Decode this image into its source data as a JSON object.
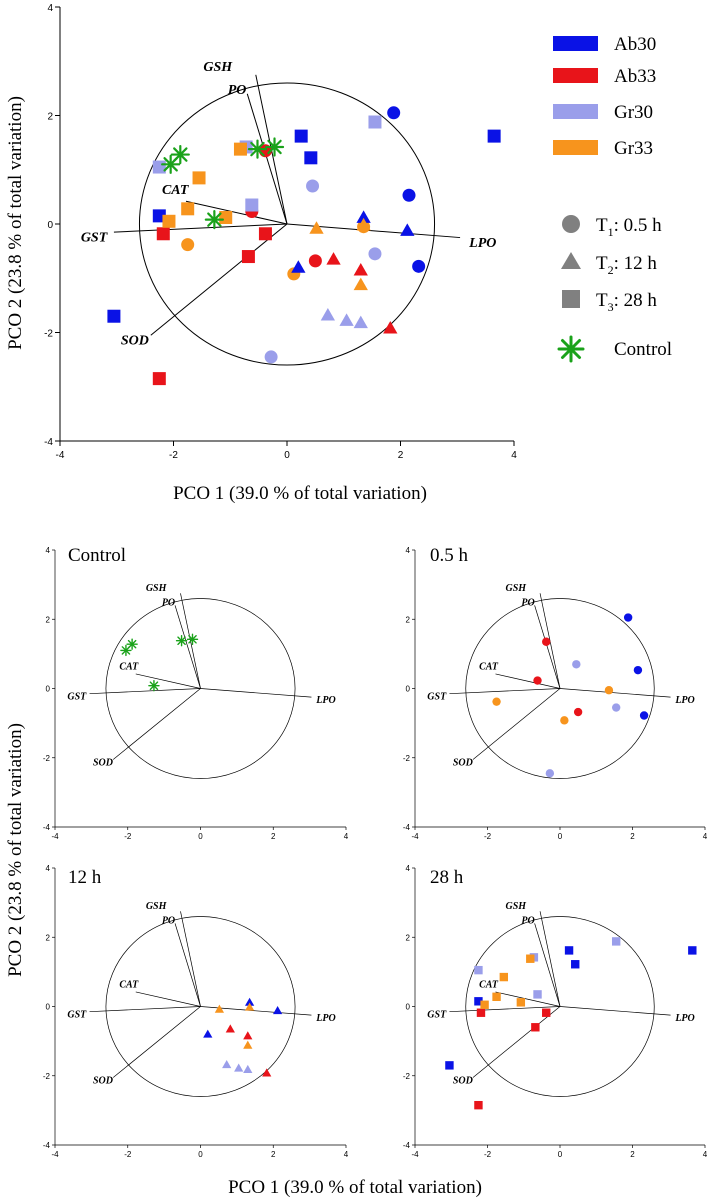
{
  "legend": {
    "groups": [
      {
        "name": "Ab30",
        "color": "#0a12e6"
      },
      {
        "name": "Ab33",
        "color": "#e8141a"
      },
      {
        "name": "Gr30",
        "color": "#9a9eea"
      },
      {
        "name": "Gr33",
        "color": "#f7941d"
      }
    ],
    "times": [
      {
        "key": "T1",
        "shape": "circle",
        "prefix": "T",
        "sub": "1",
        "suffix": ": 0.5 h"
      },
      {
        "key": "T2",
        "shape": "triangle",
        "prefix": "T",
        "sub": "2",
        "suffix": ": 12 h"
      },
      {
        "key": "T3",
        "shape": "square",
        "prefix": "T",
        "sub": "3",
        "suffix": ": 28 h"
      }
    ],
    "control_label": "Control",
    "control_color": "#1aa21a",
    "neutral_color": "#808080"
  },
  "axes": {
    "xlabel": "PCO 1 (39.0 % of total variation)",
    "ylabel": "PCO 2 (23.8 % of total variation)",
    "xlim": [
      -4,
      4
    ],
    "ylim": [
      -4,
      4
    ],
    "ticks": [
      "-4",
      "-2",
      "0",
      "2",
      "4"
    ],
    "tick_values": [
      -4,
      -2,
      0,
      2,
      4
    ]
  },
  "panel_titles": {
    "control": "Control",
    "t1": "0.5 h",
    "t2": "12 h",
    "t3": "28 h"
  },
  "chart_data": {
    "type": "scatter",
    "title": "",
    "circle_radius": 2.6,
    "vectors": [
      {
        "name": "GSH",
        "x": -0.55,
        "y": 2.75,
        "lx": -1.22,
        "ly": 2.82
      },
      {
        "name": "PO",
        "x": -0.7,
        "y": 2.4,
        "lx": -0.88,
        "ly": 2.4
      },
      {
        "name": "CAT",
        "x": -1.78,
        "y": 0.42,
        "lx": -1.97,
        "ly": 0.55
      },
      {
        "name": "GST",
        "x": -3.05,
        "y": -0.15,
        "lx": -3.4,
        "ly": -0.32
      },
      {
        "name": "SOD",
        "x": -2.4,
        "y": -2.05,
        "lx": -2.68,
        "ly": -2.22
      },
      {
        "name": "LPO",
        "x": 3.05,
        "y": -0.25,
        "lx": 3.45,
        "ly": -0.42
      }
    ],
    "points": [
      {
        "group": "Ab30",
        "time": "T1",
        "x": 1.88,
        "y": 2.05
      },
      {
        "group": "Ab30",
        "time": "T1",
        "x": 2.15,
        "y": 0.53
      },
      {
        "group": "Ab30",
        "time": "T1",
        "x": 2.32,
        "y": -0.78
      },
      {
        "group": "Ab33",
        "time": "T1",
        "x": -0.38,
        "y": 1.35
      },
      {
        "group": "Ab33",
        "time": "T1",
        "x": -0.62,
        "y": 0.23
      },
      {
        "group": "Ab33",
        "time": "T1",
        "x": 0.5,
        "y": -0.68
      },
      {
        "group": "Gr30",
        "time": "T1",
        "x": 0.45,
        "y": 0.7
      },
      {
        "group": "Gr30",
        "time": "T1",
        "x": 1.55,
        "y": -0.55
      },
      {
        "group": "Gr30",
        "time": "T1",
        "x": -0.28,
        "y": -2.45
      },
      {
        "group": "Gr33",
        "time": "T1",
        "x": -1.75,
        "y": -0.38
      },
      {
        "group": "Gr33",
        "time": "T1",
        "x": 1.35,
        "y": -0.05
      },
      {
        "group": "Gr33",
        "time": "T1",
        "x": 0.12,
        "y": -0.92
      },
      {
        "group": "Ab30",
        "time": "T2",
        "x": 1.35,
        "y": 0.12
      },
      {
        "group": "Ab30",
        "time": "T2",
        "x": 2.12,
        "y": -0.12
      },
      {
        "group": "Ab30",
        "time": "T2",
        "x": 0.2,
        "y": -0.8
      },
      {
        "group": "Ab33",
        "time": "T2",
        "x": 0.82,
        "y": -0.65
      },
      {
        "group": "Ab33",
        "time": "T2",
        "x": 1.3,
        "y": -0.85
      },
      {
        "group": "Ab33",
        "time": "T2",
        "x": 1.82,
        "y": -1.92
      },
      {
        "group": "Gr30",
        "time": "T2",
        "x": 0.72,
        "y": -1.68
      },
      {
        "group": "Gr30",
        "time": "T2",
        "x": 1.05,
        "y": -1.78
      },
      {
        "group": "Gr30",
        "time": "T2",
        "x": 1.3,
        "y": -1.82
      },
      {
        "group": "Gr33",
        "time": "T2",
        "x": 0.52,
        "y": -0.08
      },
      {
        "group": "Gr33",
        "time": "T2",
        "x": 1.35,
        "y": -0.02
      },
      {
        "group": "Gr33",
        "time": "T2",
        "x": 1.3,
        "y": -1.12
      },
      {
        "group": "Ab30",
        "time": "T3",
        "x": 0.25,
        "y": 1.62
      },
      {
        "group": "Ab30",
        "time": "T3",
        "x": 0.42,
        "y": 1.22
      },
      {
        "group": "Ab30",
        "time": "T3",
        "x": 3.65,
        "y": 1.62
      },
      {
        "group": "Ab30",
        "time": "T3",
        "x": -2.25,
        "y": 0.15
      },
      {
        "group": "Ab30",
        "time": "T3",
        "x": -3.05,
        "y": -1.7
      },
      {
        "group": "Ab33",
        "time": "T3",
        "x": -2.18,
        "y": -0.18
      },
      {
        "group": "Ab33",
        "time": "T3",
        "x": -0.38,
        "y": -0.18
      },
      {
        "group": "Ab33",
        "time": "T3",
        "x": -0.68,
        "y": -0.6
      },
      {
        "group": "Ab33",
        "time": "T3",
        "x": -2.25,
        "y": -2.85
      },
      {
        "group": "Gr30",
        "time": "T3",
        "x": -2.25,
        "y": 1.05
      },
      {
        "group": "Gr30",
        "time": "T3",
        "x": -0.72,
        "y": 1.42
      },
      {
        "group": "Gr30",
        "time": "T3",
        "x": 1.55,
        "y": 1.88
      },
      {
        "group": "Gr30",
        "time": "T3",
        "x": -0.62,
        "y": 0.35
      },
      {
        "group": "Gr33",
        "time": "T3",
        "x": -0.82,
        "y": 1.38
      },
      {
        "group": "Gr33",
        "time": "T3",
        "x": -1.55,
        "y": 0.85
      },
      {
        "group": "Gr33",
        "time": "T3",
        "x": -1.75,
        "y": 0.28
      },
      {
        "group": "Gr33",
        "time": "T3",
        "x": -2.08,
        "y": 0.05
      },
      {
        "group": "Gr33",
        "time": "T3",
        "x": -1.08,
        "y": 0.12
      },
      {
        "group": "Control",
        "time": "C",
        "x": -2.05,
        "y": 1.1
      },
      {
        "group": "Control",
        "time": "C",
        "x": -1.88,
        "y": 1.28
      },
      {
        "group": "Control",
        "time": "C",
        "x": -0.52,
        "y": 1.38
      },
      {
        "group": "Control",
        "time": "C",
        "x": -0.22,
        "y": 1.42
      },
      {
        "group": "Control",
        "time": "C",
        "x": -1.28,
        "y": 0.08
      }
    ]
  }
}
